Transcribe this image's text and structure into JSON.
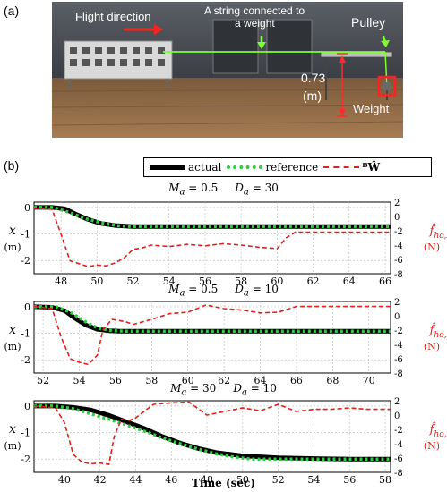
{
  "fig_labels": {
    "a": "(a)",
    "b": "(b)"
  },
  "photo": {
    "flight_direction": "Flight direction",
    "string_note": "A string connected to",
    "string_note2": "a weight",
    "pulley": "Pulley",
    "height_value": "0.73",
    "height_unit": "(m)",
    "weight": "Weight"
  },
  "legend": {
    "actual": "actual",
    "reference": "reference",
    "w_hat": "ᴮŴ"
  },
  "colors": {
    "actual": "#000000",
    "reference": "#2ecc40",
    "estimate": "#e0201b"
  },
  "panels": [
    {
      "title_m": "M",
      "title_m_sub": "a",
      "title_m_val": "= 0.5",
      "title_d": "D",
      "title_d_sub": "a",
      "title_d_val": "= 30",
      "ylabel_left": "x",
      "ylabel_left_unit": "(m)",
      "ylabel_right": "f̂",
      "ylabel_right_sub": "ho,x",
      "ylabel_right_unit": "(N)"
    },
    {
      "title_m": "M",
      "title_m_sub": "a",
      "title_m_val": "= 0.5",
      "title_d": "D",
      "title_d_sub": "a",
      "title_d_val": "= 10",
      "ylabel_left": "x",
      "ylabel_left_unit": "(m)",
      "ylabel_right": "f̂",
      "ylabel_right_sub": "ho,x",
      "ylabel_right_unit": "(N)"
    },
    {
      "title_m": "M",
      "title_m_sub": "a",
      "title_m_val": "= 30",
      "title_d": "D",
      "title_d_sub": "a",
      "title_d_val": "= 10",
      "ylabel_left": "x",
      "ylabel_left_unit": "(m)",
      "ylabel_right": "f̂",
      "ylabel_right_sub": "ho,x",
      "ylabel_right_unit": "(N)"
    }
  ],
  "xlabel": "Time (sec)",
  "chart_data": [
    {
      "type": "line",
      "xlim": [
        46.5,
        66.3
      ],
      "ylim_left": [
        -2.5,
        0.2
      ],
      "ylim_right": [
        -8,
        2
      ],
      "xticks": [
        48,
        50,
        52,
        54,
        56,
        58,
        60,
        62,
        64,
        66
      ],
      "yticks_left": [
        0,
        -1,
        -2
      ],
      "yticks_right": [
        2,
        0,
        -2,
        -4,
        -6,
        -8
      ],
      "grid": true,
      "series": [
        {
          "name": "actual",
          "axis": "left",
          "x": [
            46.5,
            47.5,
            48.2,
            48.8,
            49.5,
            50.2,
            51,
            52,
            56,
            60,
            64,
            66.3
          ],
          "y": [
            0.0,
            0.0,
            -0.05,
            -0.25,
            -0.45,
            -0.6,
            -0.68,
            -0.72,
            -0.72,
            -0.72,
            -0.72,
            -0.72
          ]
        },
        {
          "name": "reference",
          "axis": "left",
          "x": [
            46.5,
            47.6,
            48.5,
            49.5,
            50.5,
            51.3,
            52,
            56,
            60,
            64,
            66.3
          ],
          "y": [
            0.0,
            0.0,
            -0.2,
            -0.45,
            -0.62,
            -0.7,
            -0.72,
            -0.72,
            -0.72,
            -0.72,
            -0.72
          ]
        },
        {
          "name": "ᴮŴ",
          "axis": "right",
          "x": [
            46.5,
            47.5,
            48.0,
            48.5,
            49.0,
            49.5,
            50.0,
            50.5,
            51.0,
            51.5,
            52.0,
            52.5,
            53,
            54,
            55,
            56,
            57,
            58,
            59,
            60,
            60.5,
            61,
            62,
            64,
            66.3
          ],
          "y": [
            1.2,
            1.0,
            -2.5,
            -6.2,
            -6.6,
            -7.0,
            -6.8,
            -6.9,
            -6.5,
            -5.8,
            -4.6,
            -4.4,
            -4.0,
            -4.2,
            -3.9,
            -4.1,
            -3.8,
            -4.0,
            -4.3,
            -4.5,
            -3.0,
            -2.2,
            -2.2,
            -2.2,
            -2.2
          ]
        }
      ]
    },
    {
      "type": "line",
      "xlim": [
        51.5,
        71.2
      ],
      "ylim_left": [
        -2.5,
        0.2
      ],
      "ylim_right": [
        -8,
        2
      ],
      "xticks": [
        52,
        54,
        56,
        58,
        60,
        62,
        64,
        66,
        68,
        70
      ],
      "yticks_left": [
        0,
        -1,
        -2
      ],
      "yticks_right": [
        2,
        0,
        -2,
        -4,
        -6,
        -8
      ],
      "grid": true,
      "series": [
        {
          "name": "actual",
          "axis": "left",
          "x": [
            51.5,
            52.5,
            53.2,
            53.8,
            54.4,
            55.0,
            55.6,
            56.2,
            57,
            60,
            64,
            68,
            71.2
          ],
          "y": [
            0.0,
            -0.02,
            -0.15,
            -0.45,
            -0.7,
            -0.85,
            -0.9,
            -0.92,
            -0.92,
            -0.92,
            -0.92,
            -0.92,
            -0.92
          ]
        },
        {
          "name": "reference",
          "axis": "left",
          "x": [
            51.5,
            52.7,
            53.5,
            54.3,
            55.0,
            55.8,
            56.5,
            60,
            64,
            68,
            71.2
          ],
          "y": [
            0.0,
            0.0,
            -0.2,
            -0.55,
            -0.8,
            -0.9,
            -0.92,
            -0.92,
            -0.92,
            -0.92,
            -0.92
          ]
        },
        {
          "name": "ᴮŴ",
          "axis": "right",
          "x": [
            51.5,
            52.5,
            53.0,
            53.5,
            54.0,
            54.5,
            55.0,
            55.3,
            55.8,
            56.5,
            57,
            58,
            59,
            60,
            61,
            62,
            63,
            64,
            65,
            66,
            68,
            71.2
          ],
          "y": [
            1.3,
            1.0,
            -3.0,
            -6.0,
            -6.5,
            -6.8,
            -5.5,
            -2.0,
            -0.5,
            -0.8,
            -1.2,
            -0.5,
            0.3,
            0.5,
            1.5,
            1.0,
            0.8,
            0.4,
            0.5,
            1.3,
            1.3,
            1.3
          ]
        }
      ]
    },
    {
      "type": "line",
      "xlim": [
        38.3,
        58.3
      ],
      "ylim_left": [
        -2.5,
        0.2
      ],
      "ylim_right": [
        -8,
        2
      ],
      "xticks": [
        40,
        42,
        44,
        46,
        48,
        50,
        52,
        54,
        56,
        58
      ],
      "yticks_left": [
        0,
        -1,
        -2
      ],
      "yticks_right": [
        2,
        0,
        -2,
        -4,
        -6,
        -8
      ],
      "grid": true,
      "series": [
        {
          "name": "actual",
          "axis": "left",
          "x": [
            38.3,
            39.5,
            40.5,
            41.5,
            42.5,
            43.5,
            44.5,
            45.5,
            46.5,
            47.5,
            48.5,
            50,
            52,
            54,
            56,
            58.3
          ],
          "y": [
            0.0,
            0.0,
            -0.05,
            -0.15,
            -0.35,
            -0.6,
            -0.85,
            -1.15,
            -1.4,
            -1.6,
            -1.75,
            -1.88,
            -1.95,
            -1.98,
            -2.0,
            -2.0
          ]
        },
        {
          "name": "reference",
          "axis": "left",
          "x": [
            38.3,
            39.5,
            40.5,
            41.5,
            42.5,
            43.5,
            44.5,
            45.5,
            46.5,
            47.5,
            48.5,
            49.5,
            50.5,
            52,
            54,
            56,
            58.3
          ],
          "y": [
            0.0,
            0.0,
            -0.1,
            -0.3,
            -0.5,
            -0.72,
            -0.95,
            -1.2,
            -1.42,
            -1.62,
            -1.8,
            -1.92,
            -2.0,
            -2.0,
            -2.0,
            -2.0,
            -2.0
          ]
        },
        {
          "name": "ᴮŴ",
          "axis": "right",
          "x": [
            38.3,
            39.5,
            40.0,
            40.5,
            41.0,
            41.5,
            42.0,
            42.5,
            42.8,
            43.2,
            43.6,
            44,
            45,
            46,
            47,
            48,
            49,
            50,
            51,
            52,
            53,
            54,
            55,
            56,
            57,
            58.3
          ],
          "y": [
            1.3,
            1.0,
            -1.0,
            -5.5,
            -6.6,
            -6.8,
            -6.7,
            -6.9,
            -3.0,
            -0.6,
            -0.8,
            -0.4,
            1.5,
            1.7,
            1.8,
            0.0,
            0.5,
            1.0,
            0.6,
            1.5,
            0.5,
            0.8,
            0.8,
            1.0,
            0.8,
            0.8
          ]
        }
      ]
    }
  ]
}
